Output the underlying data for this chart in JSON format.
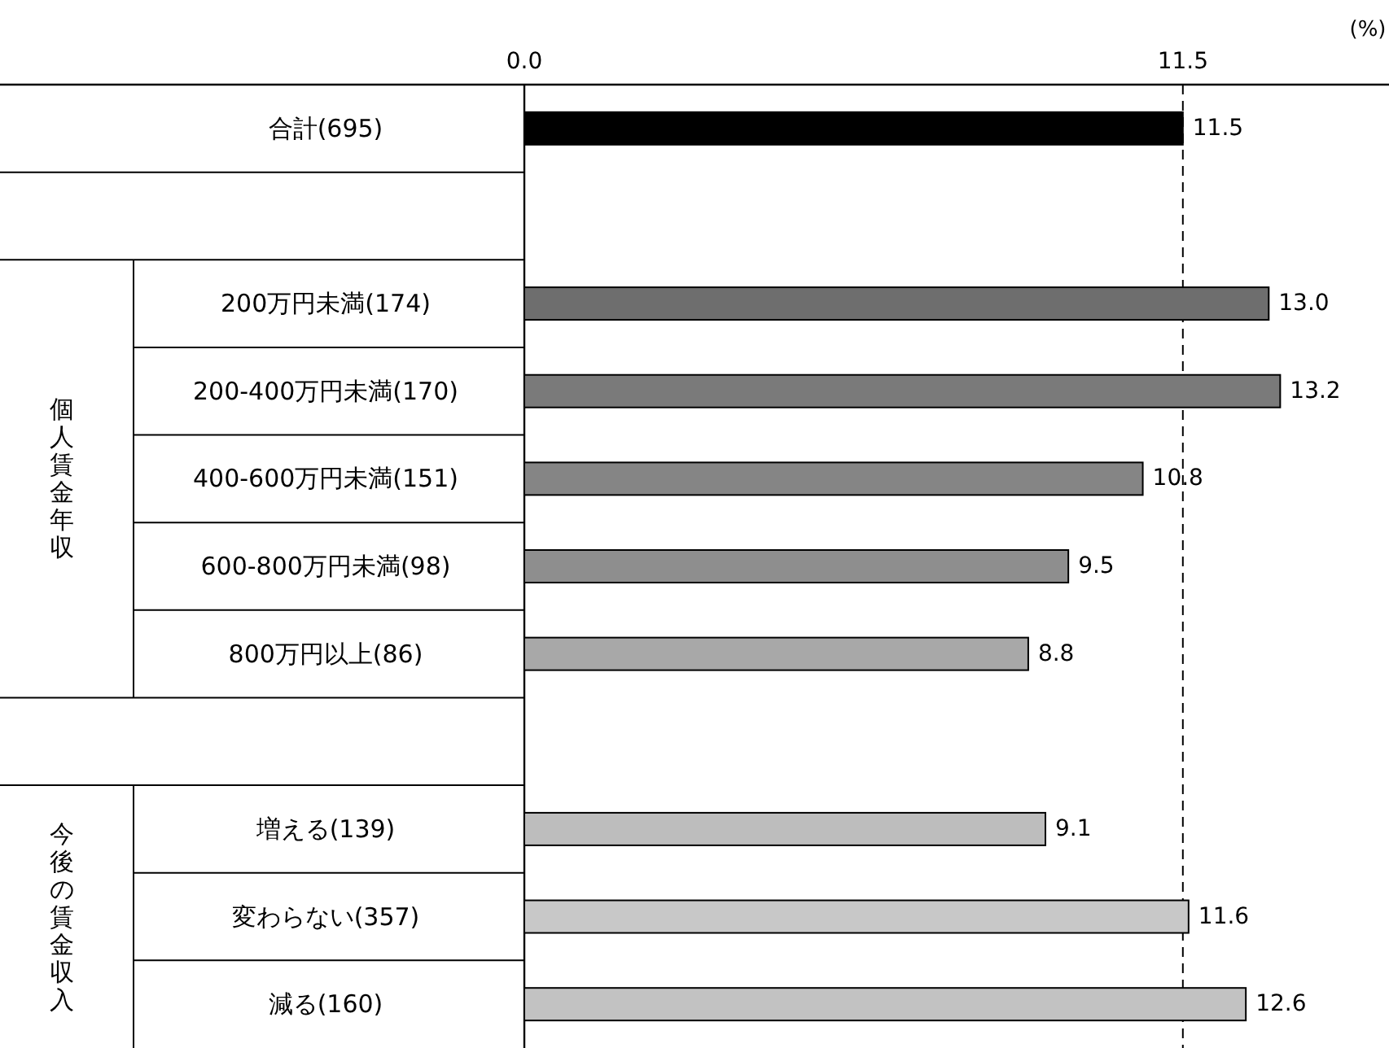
{
  "chart_data": {
    "type": "bar",
    "orientation": "horizontal",
    "xlabel": "(%)",
    "categories": [
      "合計(695)",
      null,
      "200万円未満(174)",
      "200-400万円未満(170)",
      "400-600万円未満(151)",
      "600-800万円未満(98)",
      "800万円以上(86)",
      null,
      "増える(139)",
      "変わらない(357)",
      "減る(160)"
    ],
    "values": [
      11.5,
      null,
      13.0,
      13.2,
      10.8,
      9.5,
      8.8,
      null,
      9.1,
      11.6,
      12.6
    ],
    "colors": [
      "#000000",
      null,
      "#6e6e6e",
      "#7a7a7a",
      "#858585",
      "#8e8e8e",
      "#a8a8a8",
      null,
      "#bdbdbd",
      "#c8c8c8",
      "#c2c2c2"
    ],
    "xlim": [
      0,
      15.1
    ],
    "xticks": [
      {
        "value": 0,
        "label": "0.0"
      },
      {
        "value": 11.5,
        "label": "11.5"
      }
    ],
    "ref_lines": [
      {
        "axis": "x",
        "value": 11.5,
        "line_style": "dashed"
      }
    ],
    "value_labels": [
      "11.5",
      null,
      "13.0",
      "13.2",
      "10.8",
      "9.5",
      "8.8",
      null,
      "9.1",
      "11.6",
      "12.6"
    ],
    "annotations": [
      "個人賃金年収",
      "今後の賃金収入"
    ]
  }
}
